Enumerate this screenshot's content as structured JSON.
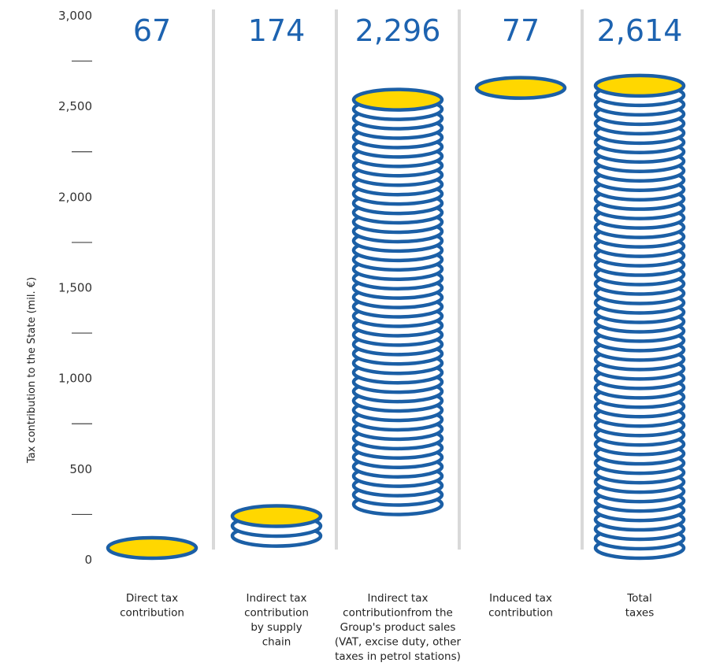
{
  "chart_data": {
    "type": "bar",
    "style": "stacked coins",
    "title": "",
    "ylabel": "Tax contribution to the State (mil. €)",
    "xlabel": "",
    "ylim": [
      0,
      3000
    ],
    "yticks": [
      0,
      500,
      1000,
      1500,
      2000,
      2500,
      3000
    ],
    "ytick_labels": [
      "0",
      "500",
      "1,000",
      "1,500",
      "2,000",
      "2,500",
      "3,000"
    ],
    "grid": false,
    "categories": [
      "Direct tax contribution",
      "Indirect tax contribution by supply chain",
      "Indirect tax contributionfrom the Group's product sales (VAT, excise duty, other taxes in petrol stations)",
      "Induced tax contribution",
      "Total taxes"
    ],
    "category_lines": [
      [
        "Direct tax",
        "contribution"
      ],
      [
        "Indirect tax",
        "contribution",
        "by supply",
        "chain"
      ],
      [
        "Indirect tax",
        "contributionfrom the",
        "Group's product sales",
        "(VAT, excise duty, other",
        "taxes in petrol stations)"
      ],
      [
        "Induced tax",
        "contribution"
      ],
      [
        "Total",
        "taxes"
      ]
    ],
    "series": [
      {
        "values": [
          67,
          174,
          2296,
          77,
          2614
        ],
        "value_labels": [
          "67",
          "174",
          "2,296",
          "77",
          "2,614"
        ],
        "bases": [
          0,
          67,
          241,
          2537,
          0
        ]
      }
    ]
  },
  "colors": {
    "coin_edge": "#1b5fa6",
    "coin_face_top": "#ffd700",
    "coin_face_stack": "#ffffff",
    "value_text": "#1d63b0",
    "separator": "#d9d9d9",
    "axis_text": "#333333"
  }
}
